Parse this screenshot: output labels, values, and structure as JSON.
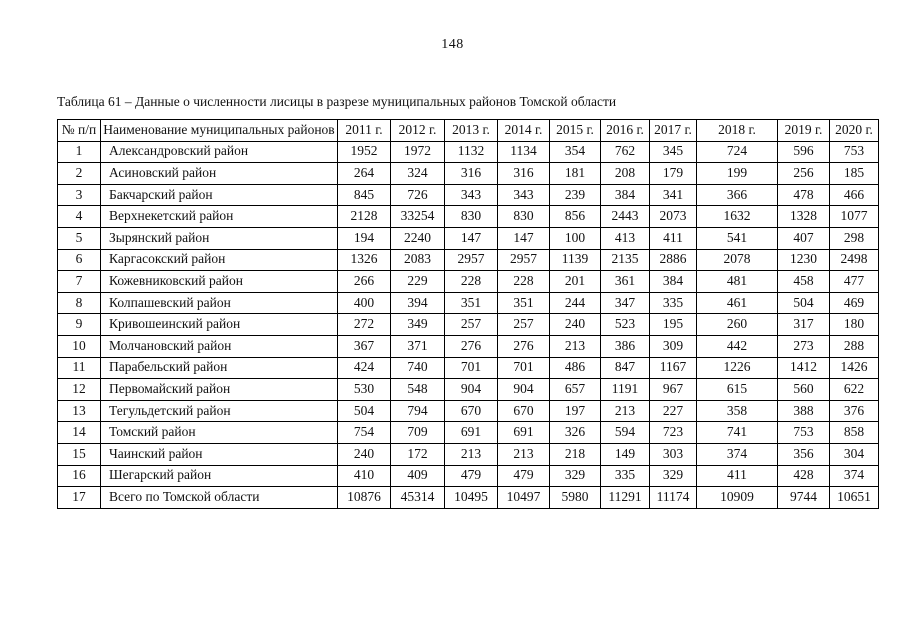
{
  "page": {
    "number": "148",
    "caption": "Таблица 61 – Данные о численности лисицы в разрезе муниципальных районов Томской области"
  },
  "table": {
    "headers": [
      "№ п/п",
      "Наименование муниципальных районов",
      "2011 г.",
      "2012 г.",
      "2013 г.",
      "2014 г.",
      "2015 г.",
      "2016 г.",
      "2017 г.",
      "2018 г.",
      "2019 г.",
      "2020 г."
    ],
    "rows": [
      {
        "num": "1",
        "name": "Александровский район",
        "values": [
          "1952",
          "1972",
          "1132",
          "1134",
          "354",
          "762",
          "345",
          "724",
          "596",
          "753"
        ]
      },
      {
        "num": "2",
        "name": "Асиновский район",
        "values": [
          "264",
          "324",
          "316",
          "316",
          "181",
          "208",
          "179",
          "199",
          "256",
          "185"
        ]
      },
      {
        "num": "3",
        "name": "Бакчарский район",
        "values": [
          "845",
          "726",
          "343",
          "343",
          "239",
          "384",
          "341",
          "366",
          "478",
          "466"
        ]
      },
      {
        "num": "4",
        "name": "Верхнекетский район",
        "values": [
          "2128",
          "33254",
          "830",
          "830",
          "856",
          "2443",
          "2073",
          "1632",
          "1328",
          "1077"
        ]
      },
      {
        "num": "5",
        "name": "Зырянский район",
        "values": [
          "194",
          "2240",
          "147",
          "147",
          "100",
          "413",
          "411",
          "541",
          "407",
          "298"
        ]
      },
      {
        "num": "6",
        "name": "Каргасокский район",
        "values": [
          "1326",
          "2083",
          "2957",
          "2957",
          "1139",
          "2135",
          "2886",
          "2078",
          "1230",
          "2498"
        ]
      },
      {
        "num": "7",
        "name": "Кожевниковский район",
        "values": [
          "266",
          "229",
          "228",
          "228",
          "201",
          "361",
          "384",
          "481",
          "458",
          "477"
        ]
      },
      {
        "num": "8",
        "name": "Колпашевский район",
        "values": [
          "400",
          "394",
          "351",
          "351",
          "244",
          "347",
          "335",
          "461",
          "504",
          "469"
        ]
      },
      {
        "num": "9",
        "name": "Кривошеинский район",
        "values": [
          "272",
          "349",
          "257",
          "257",
          "240",
          "523",
          "195",
          "260",
          "317",
          "180"
        ]
      },
      {
        "num": "10",
        "name": "Молчановский район",
        "values": [
          "367",
          "371",
          "276",
          "276",
          "213",
          "386",
          "309",
          "442",
          "273",
          "288"
        ]
      },
      {
        "num": "11",
        "name": "Парабельский район",
        "values": [
          "424",
          "740",
          "701",
          "701",
          "486",
          "847",
          "1167",
          "1226",
          "1412",
          "1426"
        ]
      },
      {
        "num": "12",
        "name": "Первомайский район",
        "values": [
          "530",
          "548",
          "904",
          "904",
          "657",
          "1191",
          "967",
          "615",
          "560",
          "622"
        ]
      },
      {
        "num": "13",
        "name": "Тегульдетский район",
        "values": [
          "504",
          "794",
          "670",
          "670",
          "197",
          "213",
          "227",
          "358",
          "388",
          "376"
        ]
      },
      {
        "num": "14",
        "name": "Томский район",
        "values": [
          "754",
          "709",
          "691",
          "691",
          "326",
          "594",
          "723",
          "741",
          "753",
          "858"
        ]
      },
      {
        "num": "15",
        "name": "Чаинский район",
        "values": [
          "240",
          "172",
          "213",
          "213",
          "218",
          "149",
          "303",
          "374",
          "356",
          "304"
        ]
      },
      {
        "num": "16",
        "name": "Шегарский район",
        "values": [
          "410",
          "409",
          "479",
          "479",
          "329",
          "335",
          "329",
          "411",
          "428",
          "374"
        ]
      },
      {
        "num": "17",
        "name": "Всего по Томской области",
        "values": [
          "10876",
          "45314",
          "10495",
          "10497",
          "5980",
          "11291",
          "11174",
          "10909",
          "9744",
          "10651"
        ]
      }
    ]
  }
}
